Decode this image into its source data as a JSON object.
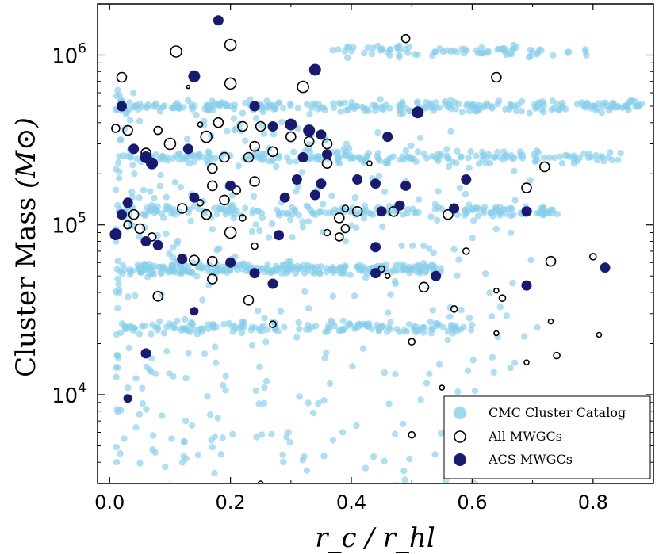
{
  "chart_data": {
    "type": "scatter",
    "title": "",
    "xlabel": "r_c / r_hl",
    "ylabel_prefix": "Cluster Mass",
    "ylabel_unit": "(M⊙)",
    "x_tick_labels": [
      "0.0",
      "0.2",
      "0.4",
      "0.6",
      "0.8"
    ],
    "x_ticks": [
      0.0,
      0.2,
      0.4,
      0.6,
      0.8
    ],
    "xlim": [
      -0.02,
      0.9
    ],
    "ylim": [
      3000,
      2000000
    ],
    "y_scale": "log",
    "y_ticks": [
      10000,
      100000,
      1000000
    ],
    "y_tick_exponents": [
      "4",
      "5",
      "6"
    ],
    "legend_position": "lower-right",
    "colors": {
      "cmc": "#87ceeb",
      "acs": "#191970",
      "mwgc_edge": "#000000"
    },
    "series": [
      {
        "name": "CMC Cluster Catalog",
        "style": "light-blue-dot",
        "bands": [
          {
            "mass": 1050000,
            "x_range": [
              0.35,
              0.8
            ],
            "count": 80
          },
          {
            "mass": 500000,
            "x_range": [
              0.01,
              0.89
            ],
            "count": 260
          },
          {
            "mass": 250000,
            "x_range": [
              0.02,
              0.85
            ],
            "count": 200
          },
          {
            "mass": 120000,
            "x_range": [
              0.01,
              0.75
            ],
            "count": 180
          },
          {
            "mass": 55000,
            "x_range": [
              0.02,
              0.55
            ],
            "count": 260
          },
          {
            "mass": 25000,
            "x_range": [
              0.02,
              0.6
            ],
            "count": 150
          }
        ],
        "scatter_count": 380
      },
      {
        "name": "All MWGCs",
        "style": "open-circle",
        "points": [
          [
            0.49,
            1250000,
            5
          ],
          [
            0.11,
            1050000,
            7
          ],
          [
            0.2,
            1150000,
            7
          ],
          [
            0.64,
            740000,
            6
          ],
          [
            0.02,
            740000,
            6
          ],
          [
            0.2,
            680000,
            7
          ],
          [
            0.32,
            650000,
            7
          ],
          [
            0.13,
            650000,
            2
          ],
          [
            0.01,
            370000,
            5
          ],
          [
            0.03,
            360000,
            6
          ],
          [
            0.08,
            360000,
            5
          ],
          [
            0.16,
            330000,
            7
          ],
          [
            0.15,
            390000,
            3
          ],
          [
            0.18,
            400000,
            6
          ],
          [
            0.22,
            380000,
            6
          ],
          [
            0.25,
            380000,
            6
          ],
          [
            0.3,
            330000,
            6
          ],
          [
            0.33,
            310000,
            6
          ],
          [
            0.36,
            300000,
            6
          ],
          [
            0.1,
            300000,
            7
          ],
          [
            0.24,
            290000,
            6
          ],
          [
            0.27,
            270000,
            6
          ],
          [
            0.06,
            265000,
            6
          ],
          [
            0.19,
            250000,
            6
          ],
          [
            0.23,
            250000,
            6
          ],
          [
            0.17,
            215000,
            6
          ],
          [
            0.36,
            230000,
            6
          ],
          [
            0.43,
            230000,
            3
          ],
          [
            0.72,
            220000,
            6
          ],
          [
            0.24,
            180000,
            6
          ],
          [
            0.17,
            170000,
            6
          ],
          [
            0.21,
            160000,
            5
          ],
          [
            0.69,
            165000,
            6
          ],
          [
            0.12,
            125000,
            6
          ],
          [
            0.15,
            135000,
            4
          ],
          [
            0.19,
            140000,
            6
          ],
          [
            0.04,
            115000,
            6
          ],
          [
            0.16,
            115000,
            6
          ],
          [
            0.22,
            110000,
            4
          ],
          [
            0.38,
            110000,
            6
          ],
          [
            0.39,
            125000,
            4
          ],
          [
            0.41,
            120000,
            6
          ],
          [
            0.47,
            120000,
            6
          ],
          [
            0.56,
            115000,
            6
          ],
          [
            0.03,
            100000,
            5
          ],
          [
            0.05,
            95000,
            6
          ],
          [
            0.07,
            85000,
            5
          ],
          [
            0.2,
            90000,
            7
          ],
          [
            0.36,
            90000,
            4
          ],
          [
            0.38,
            85000,
            5
          ],
          [
            0.39,
            95000,
            5
          ],
          [
            0.24,
            75000,
            4
          ],
          [
            0.59,
            70000,
            4
          ],
          [
            0.14,
            62000,
            6
          ],
          [
            0.17,
            61000,
            6
          ],
          [
            0.45,
            55000,
            4
          ],
          [
            0.46,
            50000,
            3
          ],
          [
            0.8,
            65000,
            4
          ],
          [
            0.73,
            61000,
            6
          ],
          [
            0.17,
            48000,
            6
          ],
          [
            0.52,
            43000,
            6
          ],
          [
            0.64,
            41000,
            3
          ],
          [
            0.65,
            37000,
            4
          ],
          [
            0.08,
            38000,
            6
          ],
          [
            0.23,
            36000,
            6
          ],
          [
            0.57,
            32000,
            4
          ],
          [
            0.27,
            26000,
            4
          ],
          [
            0.73,
            27000,
            3
          ],
          [
            0.64,
            23000,
            3
          ],
          [
            0.81,
            22500,
            3
          ],
          [
            0.5,
            20500,
            4
          ],
          [
            0.74,
            17000,
            4
          ],
          [
            0.69,
            15500,
            3
          ],
          [
            0.55,
            11000,
            3
          ],
          [
            0.5,
            5800,
            4
          ],
          [
            0.25,
            3000,
            3
          ]
        ]
      },
      {
        "name": "ACS MWGCs",
        "style": "navy-dot",
        "points": [
          [
            0.18,
            1600000,
            6
          ],
          [
            0.14,
            750000,
            7
          ],
          [
            0.34,
            820000,
            7
          ],
          [
            0.02,
            500000,
            6
          ],
          [
            0.24,
            500000,
            6
          ],
          [
            0.51,
            460000,
            7
          ],
          [
            0.27,
            380000,
            6
          ],
          [
            0.3,
            390000,
            7
          ],
          [
            0.33,
            360000,
            7
          ],
          [
            0.35,
            340000,
            6
          ],
          [
            0.46,
            330000,
            6
          ],
          [
            0.04,
            280000,
            6
          ],
          [
            0.13,
            280000,
            6
          ],
          [
            0.06,
            250000,
            7
          ],
          [
            0.07,
            230000,
            7
          ],
          [
            0.36,
            260000,
            6
          ],
          [
            0.32,
            250000,
            6
          ],
          [
            0.31,
            185000,
            6
          ],
          [
            0.41,
            185000,
            6
          ],
          [
            0.44,
            175000,
            6
          ],
          [
            0.59,
            185000,
            6
          ],
          [
            0.49,
            170000,
            6
          ],
          [
            0.35,
            175000,
            6
          ],
          [
            0.34,
            150000,
            6
          ],
          [
            0.29,
            145000,
            6
          ],
          [
            0.14,
            145000,
            6
          ],
          [
            0.03,
            135000,
            6
          ],
          [
            0.2,
            170000,
            6
          ],
          [
            0.02,
            115000,
            6
          ],
          [
            0.45,
            120000,
            6
          ],
          [
            0.48,
            130000,
            6
          ],
          [
            0.57,
            125000,
            6
          ],
          [
            0.69,
            120000,
            6
          ],
          [
            0.01,
            88000,
            7
          ],
          [
            0.06,
            80000,
            6
          ],
          [
            0.08,
            76000,
            6
          ],
          [
            0.28,
            87000,
            6
          ],
          [
            0.44,
            74000,
            6
          ],
          [
            0.12,
            63000,
            6
          ],
          [
            0.2,
            60000,
            6
          ],
          [
            0.24,
            52000,
            6
          ],
          [
            0.44,
            52000,
            6
          ],
          [
            0.54,
            50000,
            6
          ],
          [
            0.27,
            45000,
            6
          ],
          [
            0.69,
            44000,
            6
          ],
          [
            0.82,
            56000,
            6
          ],
          [
            0.14,
            31000,
            5
          ],
          [
            0.06,
            17500,
            6
          ],
          [
            0.03,
            9500,
            5
          ]
        ]
      }
    ]
  }
}
